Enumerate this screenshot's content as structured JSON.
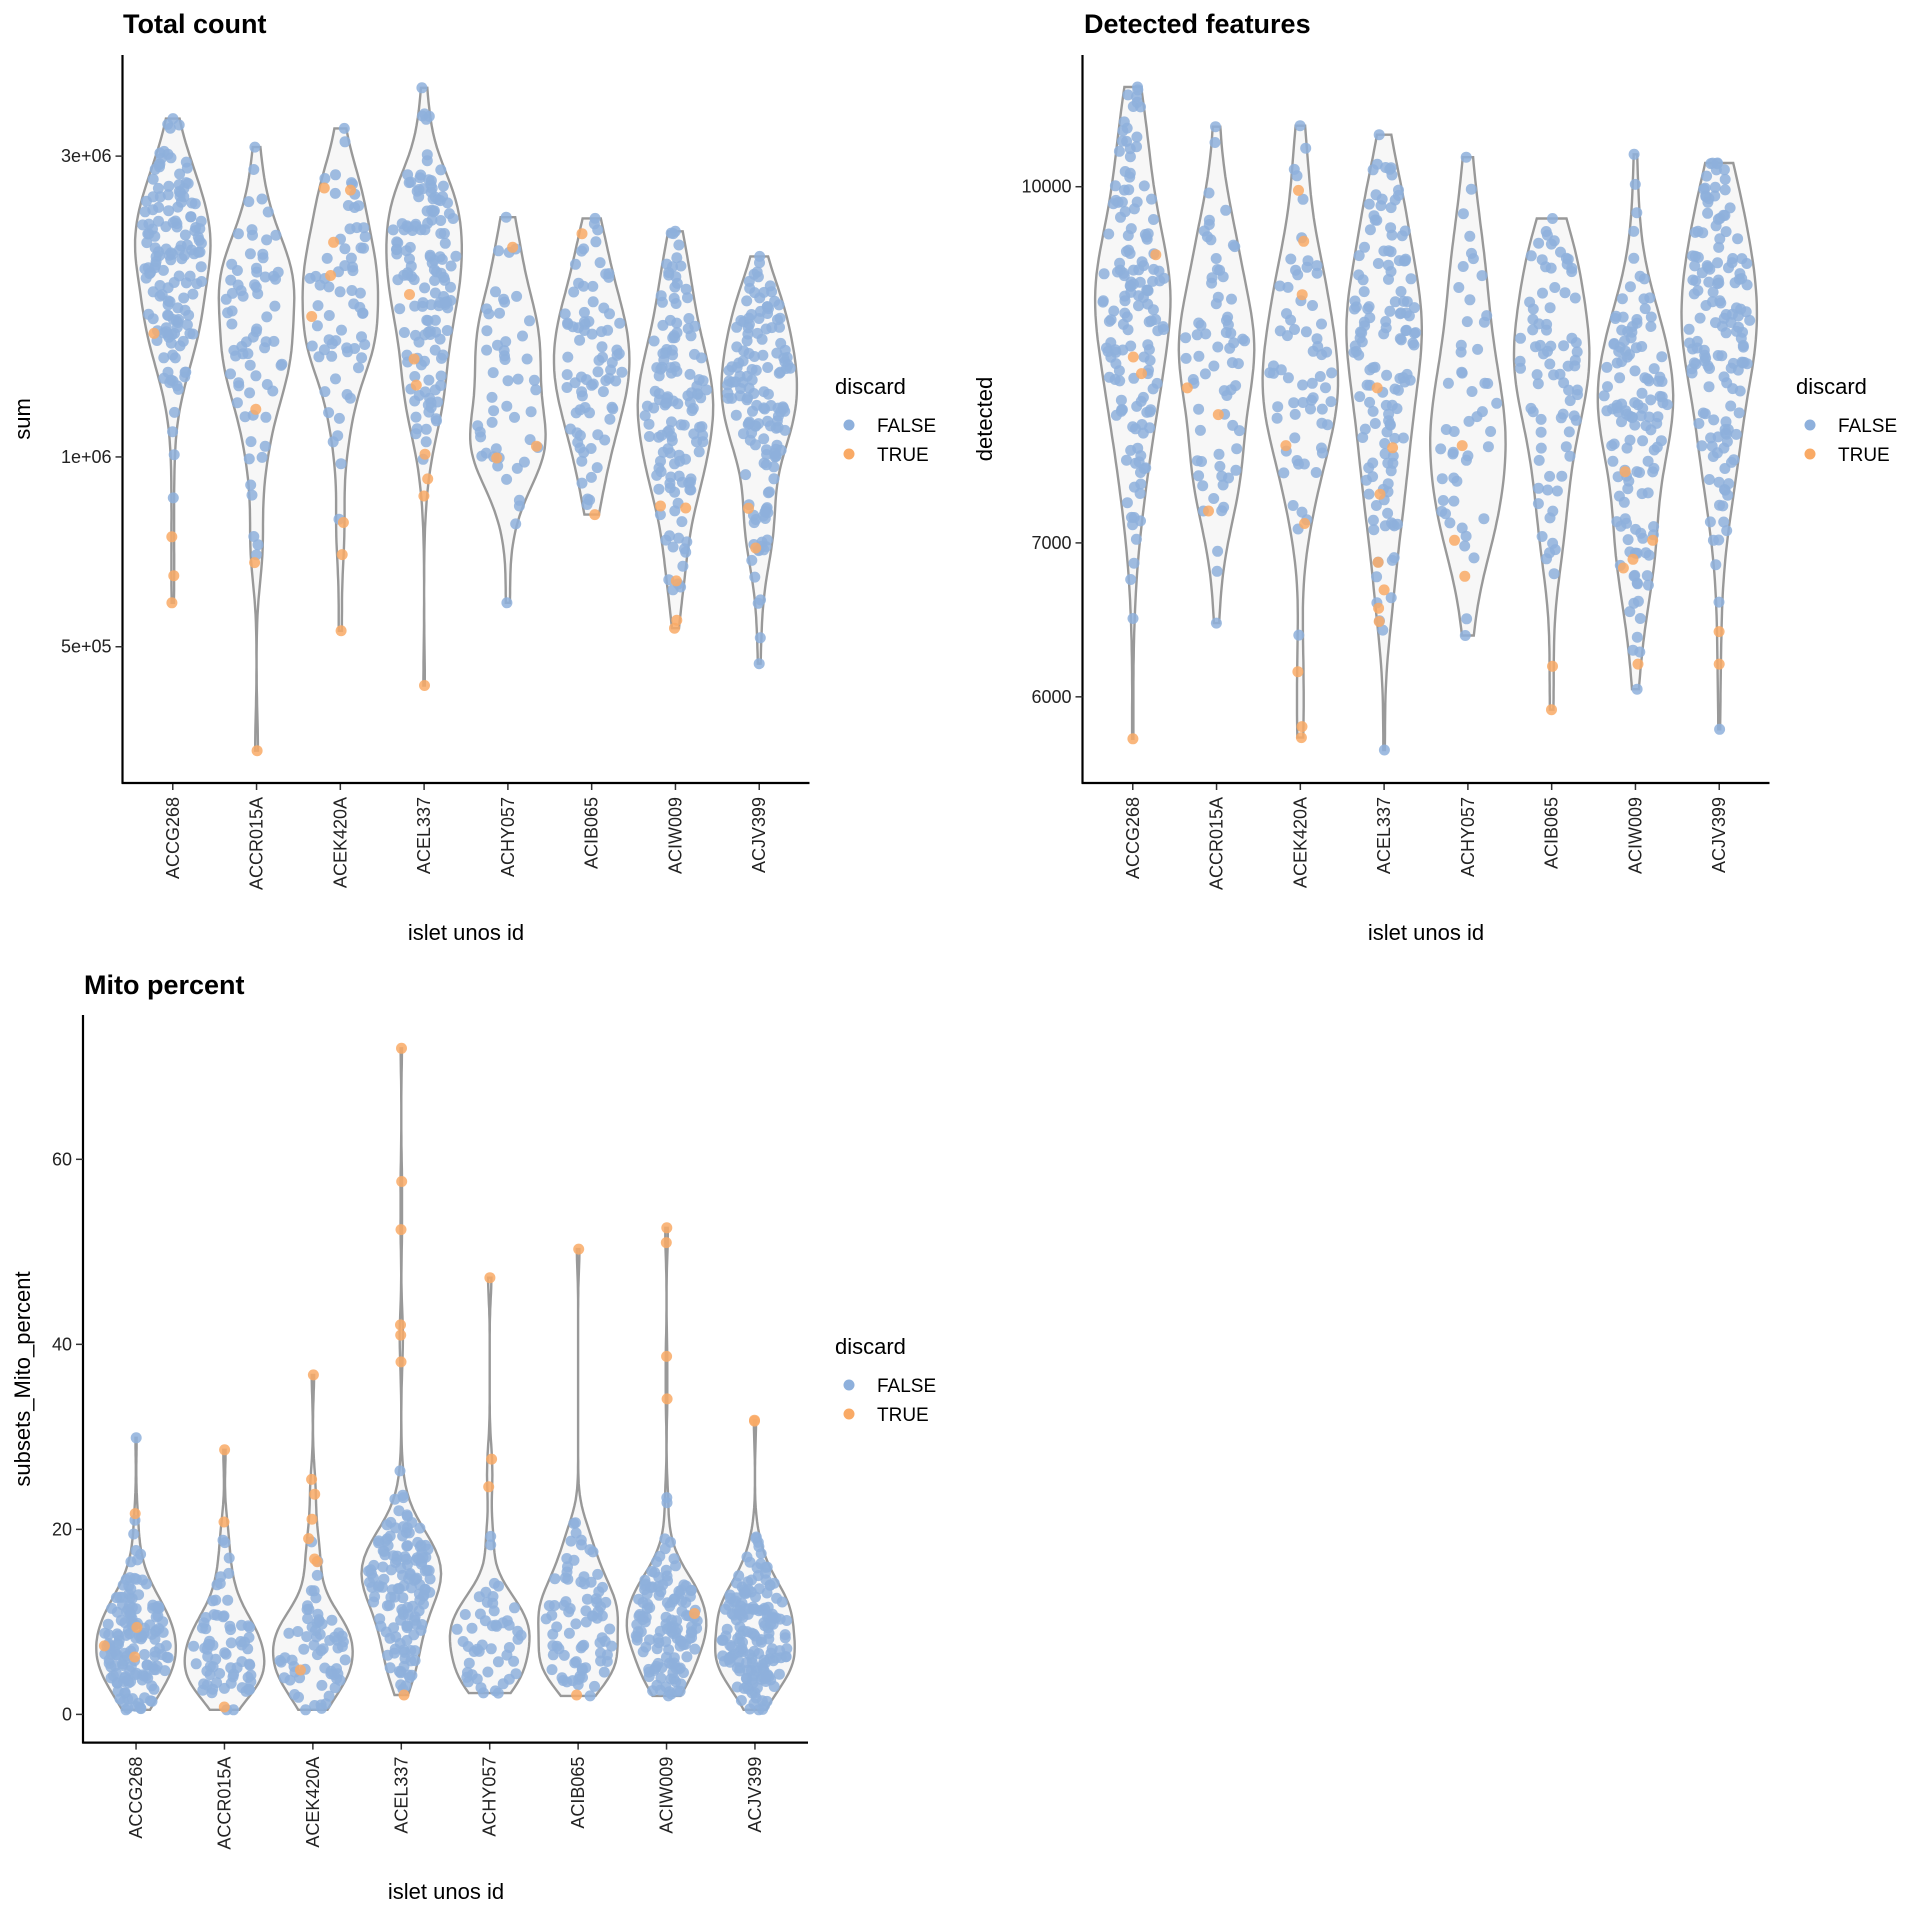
{
  "legend": {
    "title": "discard",
    "labels": [
      "FALSE",
      "TRUE"
    ]
  },
  "colors": {
    "FALSE": "#8eb0dc",
    "TRUE": "#f9aa66",
    "violin_fill": "#f7f7f7",
    "violin_stroke": "#999999"
  },
  "chart_data": [
    {
      "type": "violin",
      "title": "Total count",
      "xlabel": "islet unos id",
      "ylabel": "sum",
      "yscale": "log10",
      "ylim": [
        304000,
        4340000
      ],
      "yticks": [
        500000,
        1000000,
        3000000
      ],
      "ytick_labels": [
        "5e+05",
        "1e+06",
        "3e+06"
      ],
      "categories": [
        "ACCG268",
        "ACCR015A",
        "ACEK420A",
        "ACEL337",
        "ACHY057",
        "ACIB065",
        "ACIW009",
        "ACJV399"
      ],
      "groups": [
        {
          "name": "ACCG268",
          "min": 587000,
          "max": 3440000,
          "center": 2070000,
          "n_false": 150,
          "discard_true": [
            1570000,
            747000,
            648000,
            587000
          ]
        },
        {
          "name": "ACCR015A",
          "min": 342000,
          "max": 3100000,
          "center": 1660000,
          "n_false": 70,
          "discard_true": [
            1190000,
            680000,
            342000
          ]
        },
        {
          "name": "ACEK420A",
          "min": 530000,
          "max": 3320000,
          "center": 1810000,
          "n_false": 65,
          "discard_true": [
            2670000,
            2650000,
            2190000,
            1940000,
            1670000,
            787000,
            700000,
            530000
          ]
        },
        {
          "name": "ACEL337",
          "min": 434000,
          "max": 3850000,
          "center": 1900000,
          "n_false": 140,
          "discard_true": [
            1810000,
            1430000,
            1300000,
            1010000,
            923000,
            867000,
            434000
          ]
        },
        {
          "name": "ACHY057",
          "min": 587000,
          "max": 2400000,
          "center": 1330000,
          "n_false": 50,
          "discard_true": [
            2150000,
            1040000,
            996000
          ]
        },
        {
          "name": "ACIB065",
          "min": 810000,
          "max": 2390000,
          "center": 1420000,
          "n_false": 80,
          "discard_true": [
            2260000,
            810000
          ]
        },
        {
          "name": "ACIW009",
          "min": 535000,
          "max": 2280000,
          "center": 1240000,
          "n_false": 130,
          "discard_true": [
            836000,
            830000,
            636000,
            551000,
            535000
          ]
        },
        {
          "name": "ACJV399",
          "min": 470000,
          "max": 2080000,
          "center": 1270000,
          "n_false": 150,
          "discard_true": [
            829000,
            717000
          ]
        }
      ]
    },
    {
      "type": "violin",
      "title": "Detected features",
      "xlabel": "islet unos id",
      "ylabel": "detected",
      "yscale": "log10",
      "ylim": [
        5504,
        11410
      ],
      "yticks": [
        6000,
        7000,
        10000
      ],
      "ytick_labels": [
        "6000",
        "7000",
        "10000"
      ],
      "categories": [
        "ACCG268",
        "ACCR015A",
        "ACEK420A",
        "ACEL337",
        "ACHY057",
        "ACIB065",
        "ACIW009",
        "ACJV399"
      ],
      "groups": [
        {
          "name": "ACCG268",
          "min": 5753,
          "max": 11050,
          "center": 8900,
          "n_false": 150,
          "discard_true": [
            9342,
            8432,
            8293,
            5753
          ]
        },
        {
          "name": "ACCR015A",
          "min": 6460,
          "max": 10620,
          "center": 8550,
          "n_false": 70,
          "discard_true": [
            8175,
            7960,
            7227
          ]
        },
        {
          "name": "ACEK420A",
          "min": 5760,
          "max": 10630,
          "center": 8400,
          "n_false": 65,
          "discard_true": [
            9963,
            9468,
            8975,
            7716,
            7137,
            6153,
            5824,
            5760
          ]
        },
        {
          "name": "ACEL337",
          "min": 5689,
          "max": 10535,
          "center": 8500,
          "n_false": 140,
          "discard_true": [
            8175,
            7700,
            7350,
            6865,
            6678,
            6557,
            6470
          ]
        },
        {
          "name": "ACHY057",
          "min": 6380,
          "max": 10300,
          "center": 8090,
          "n_false": 50,
          "discard_true": [
            7716,
            7018,
            6770
          ]
        },
        {
          "name": "ACIB065",
          "min": 5923,
          "max": 9687,
          "center": 8345,
          "n_false": 80,
          "discard_true": [
            6186,
            5923
          ]
        },
        {
          "name": "ACIW009",
          "min": 6046,
          "max": 10330,
          "center": 7940,
          "n_false": 130,
          "discard_true": [
            7517,
            7018,
            6886,
            6826,
            6200
          ]
        },
        {
          "name": "ACJV399",
          "min": 5808,
          "max": 10240,
          "center": 8762,
          "n_false": 150,
          "discard_true": [
            6405,
            6200
          ]
        }
      ]
    },
    {
      "type": "violin",
      "title": "Mito percent",
      "xlabel": "islet unos id",
      "ylabel": "subsets_Mito_percent",
      "yscale": "linear",
      "ylim": [
        -3.05,
        75.6
      ],
      "yticks": [
        0,
        20,
        40,
        60
      ],
      "ytick_labels": [
        "0",
        "20",
        "40",
        "60"
      ],
      "categories": [
        "ACCG268",
        "ACCR015A",
        "ACEK420A",
        "ACEL337",
        "ACHY057",
        "ACIB065",
        "ACIW009",
        "ACJV399"
      ],
      "groups": [
        {
          "name": "ACCG268",
          "min": 0.5,
          "max": 29.9,
          "center": 6,
          "n_false": 150,
          "discard_true": [
            21.7,
            9.4,
            7.4,
            6.2
          ]
        },
        {
          "name": "ACCR015A",
          "min": 0.5,
          "max": 28.6,
          "center": 5,
          "n_false": 70,
          "discard_true": [
            28.6,
            20.8,
            0.8
          ]
        },
        {
          "name": "ACEK420A",
          "min": 0.5,
          "max": 36.7,
          "center": 5,
          "n_false": 65,
          "discard_true": [
            36.7,
            25.4,
            23.8,
            21.1,
            19.0,
            16.8,
            16.5,
            4.8
          ]
        },
        {
          "name": "ACEL337",
          "min": 2.1,
          "max": 72.0,
          "center": 14,
          "n_false": 140,
          "discard_true": [
            72.0,
            57.6,
            52.4,
            42.1,
            41.0,
            38.1,
            2.1
          ]
        },
        {
          "name": "ACHY057",
          "min": 2.3,
          "max": 47.2,
          "center": 6,
          "n_false": 50,
          "discard_true": [
            47.2,
            27.6,
            24.6
          ]
        },
        {
          "name": "ACIB065",
          "min": 2.0,
          "max": 50.3,
          "center": 10,
          "n_false": 80,
          "discard_true": [
            50.3,
            2.1
          ]
        },
        {
          "name": "ACIW009",
          "min": 2.0,
          "max": 52.6,
          "center": 8,
          "n_false": 130,
          "discard_true": [
            52.6,
            51.0,
            38.7,
            34.1,
            10.9
          ]
        },
        {
          "name": "ACJV399",
          "min": 0.5,
          "max": 31.8,
          "center": 8,
          "n_false": 170,
          "discard_true": [
            31.8,
            31.7
          ]
        }
      ]
    }
  ]
}
